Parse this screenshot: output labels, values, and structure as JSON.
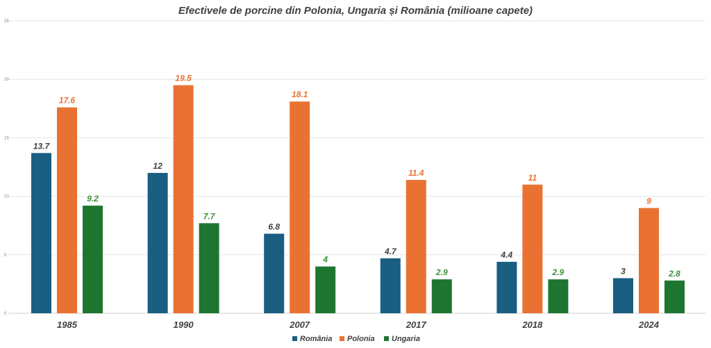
{
  "chart_data": {
    "type": "bar",
    "title": "Efectivele de porcine din Polonia, Ungaria și România (milioane capete)",
    "xlabel": "",
    "ylabel": "",
    "categories": [
      "1985",
      "1990",
      "2007",
      "2017",
      "2018",
      "2024"
    ],
    "ylim": [
      0,
      25
    ],
    "yticks": [
      "0",
      "5",
      "10",
      "15",
      "20",
      "25"
    ],
    "grid": true,
    "legend_position": "bottom",
    "series": [
      {
        "name": "România",
        "color": "#1a5e82",
        "values": [
          13.7,
          12,
          6.8,
          4.7,
          4.4,
          3
        ]
      },
      {
        "name": "Polonia",
        "color": "#e97233",
        "values": [
          17.6,
          19.5,
          18.1,
          11.4,
          11,
          9
        ]
      },
      {
        "name": "Ungaria",
        "color": "#1e7530",
        "values": [
          9.2,
          7.7,
          4,
          2.9,
          2.9,
          2.8
        ]
      }
    ],
    "data_label_colors": [
      "#404040",
      "#e97233",
      "#3a8f3a"
    ]
  }
}
